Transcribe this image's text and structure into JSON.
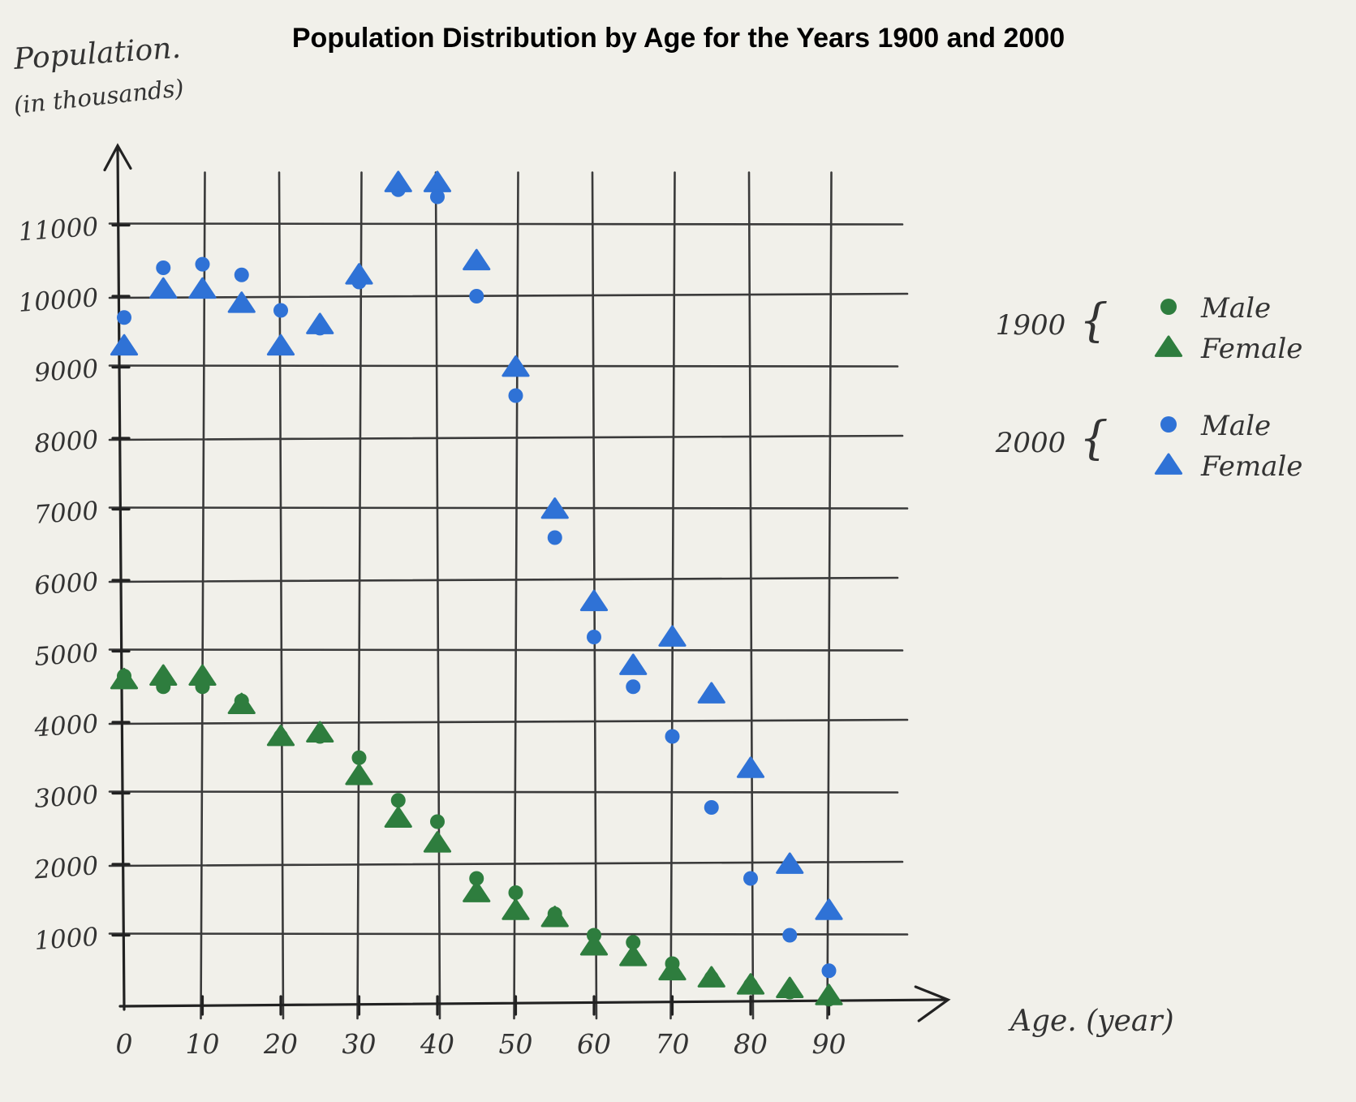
{
  "chart_data": {
    "type": "scatter",
    "title": "Population Distribution by Age for the Years 1900 and 2000",
    "ylabel_line1": "Population.",
    "ylabel_line2": "(in thousands)",
    "xlabel": "Age. (year)",
    "x_ticks": [
      0,
      10,
      20,
      30,
      40,
      50,
      60,
      70,
      80,
      90
    ],
    "y_ticks": [
      1000,
      2000,
      3000,
      4000,
      5000,
      6000,
      7000,
      8000,
      9000,
      10000,
      11000
    ],
    "y_tick_labels": [
      "1000",
      "2000",
      "3000",
      "4000",
      "5000",
      "6000",
      "7000",
      "8000",
      "9000",
      "10000",
      "11000"
    ],
    "xlim": [
      0,
      105
    ],
    "ylim": [
      0,
      12000
    ],
    "grid": true,
    "legend_position": "right",
    "legend": [
      {
        "group": "1900",
        "entries": [
          {
            "label": "Male",
            "marker": "circle",
            "color": "#2e7d3e"
          },
          {
            "label": "Female",
            "marker": "triangle",
            "color": "#2e7d3e"
          }
        ]
      },
      {
        "group": "2000",
        "entries": [
          {
            "label": "Male",
            "marker": "circle",
            "color": "#2f72d6"
          },
          {
            "label": "Female",
            "marker": "triangle",
            "color": "#2f72d6"
          }
        ]
      }
    ],
    "series": [
      {
        "year": "1900",
        "sex": "Male",
        "marker": "circle",
        "color": "#2e7d3e",
        "x": [
          0,
          5,
          10,
          15,
          20,
          25,
          30,
          35,
          40,
          45,
          50,
          55,
          60,
          65,
          70,
          75,
          80,
          85,
          90
        ],
        "y": [
          4650,
          4500,
          4500,
          4300,
          3800,
          3800,
          3500,
          2900,
          2600,
          1800,
          1600,
          1300,
          1000,
          900,
          600,
          400,
          300,
          200,
          100
        ]
      },
      {
        "year": "1900",
        "sex": "Female",
        "marker": "triangle",
        "color": "#2e7d3e",
        "x": [
          0,
          5,
          10,
          15,
          20,
          25,
          30,
          35,
          40,
          45,
          50,
          55,
          60,
          65,
          70,
          75,
          80,
          85,
          90
        ],
        "y": [
          4600,
          4650,
          4650,
          4250,
          3800,
          3850,
          3250,
          2650,
          2300,
          1600,
          1350,
          1250,
          850,
          700,
          500,
          400,
          300,
          250,
          150
        ]
      },
      {
        "year": "2000",
        "sex": "Male",
        "marker": "circle",
        "color": "#2f72d6",
        "x": [
          0,
          5,
          10,
          15,
          20,
          25,
          30,
          35,
          40,
          45,
          50,
          55,
          60,
          65,
          70,
          75,
          80,
          85,
          90
        ],
        "y": [
          9700,
          10400,
          10450,
          10300,
          9800,
          9550,
          10200,
          11500,
          11400,
          10000,
          8600,
          6600,
          5200,
          4500,
          3800,
          2800,
          1800,
          1000,
          500
        ]
      },
      {
        "year": "2000",
        "sex": "Female",
        "marker": "triangle",
        "color": "#2f72d6",
        "x": [
          0,
          5,
          10,
          15,
          20,
          25,
          30,
          35,
          40,
          45,
          50,
          55,
          60,
          65,
          70,
          75,
          80,
          85,
          90
        ],
        "y": [
          9300,
          10100,
          10100,
          9900,
          9300,
          9600,
          10300,
          11600,
          11600,
          10500,
          9000,
          7000,
          5700,
          4800,
          5200,
          4400,
          3350,
          2000,
          1350
        ]
      }
    ]
  }
}
